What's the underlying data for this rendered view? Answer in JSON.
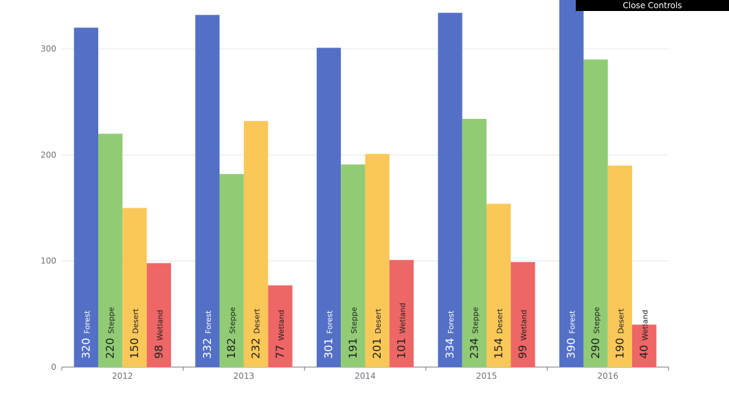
{
  "controls": {
    "close_label": "Close Controls"
  },
  "chart_data": {
    "type": "bar",
    "categories": [
      "2012",
      "2013",
      "2014",
      "2015",
      "2016"
    ],
    "series": [
      {
        "name": "Forest",
        "color": "#5470c6",
        "values": [
          320,
          332,
          301,
          334,
          390
        ]
      },
      {
        "name": "Steppe",
        "color": "#91cc75",
        "values": [
          220,
          182,
          191,
          234,
          290
        ]
      },
      {
        "name": "Desert",
        "color": "#fac858",
        "values": [
          150,
          232,
          201,
          154,
          190
        ]
      },
      {
        "name": "Wetland",
        "color": "#ee6666",
        "values": [
          98,
          77,
          101,
          99,
          40
        ]
      }
    ],
    "ylim": [
      0,
      400
    ],
    "yticks": [
      0,
      100,
      200,
      300
    ],
    "grid": true
  }
}
